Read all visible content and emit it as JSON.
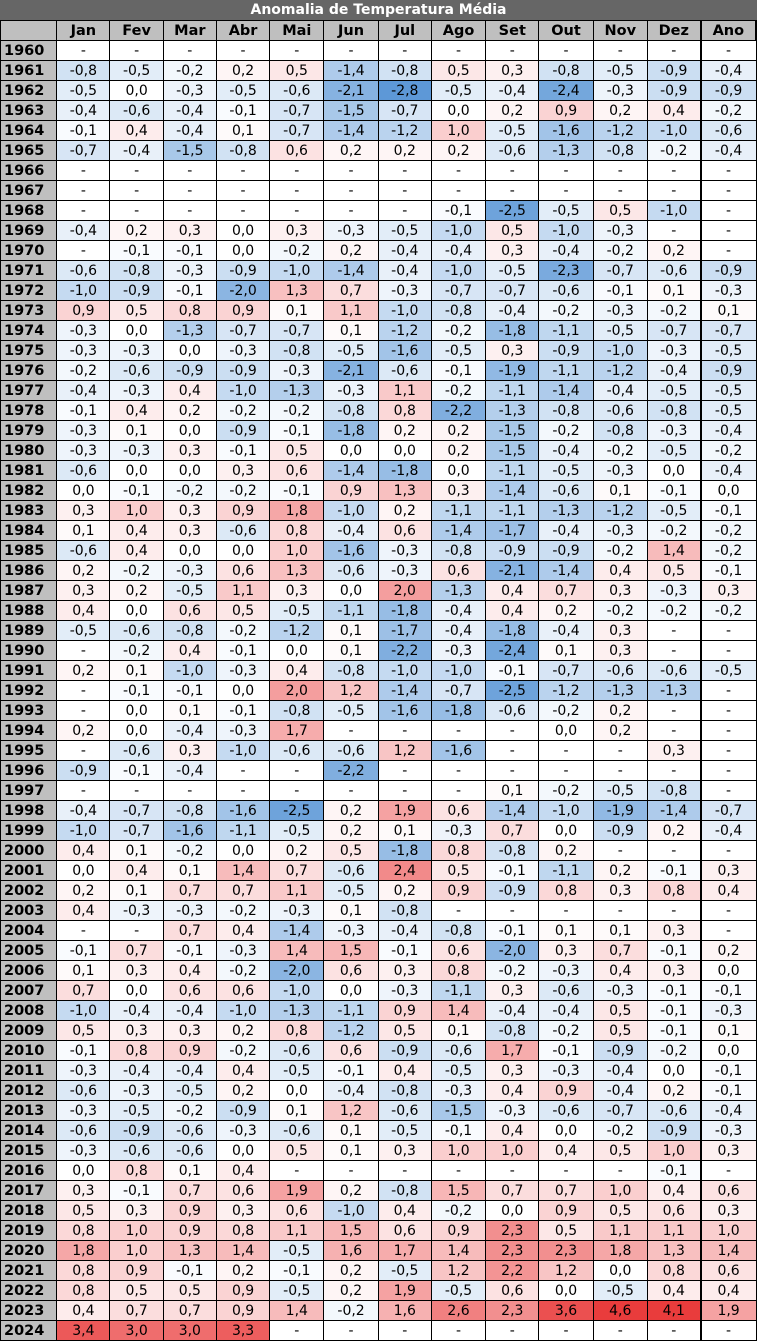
{
  "title": "Anomalia de Temperatura Média",
  "columns": [
    "Jan",
    "Fev",
    "Mar",
    "Abr",
    "Mai",
    "Jun",
    "Jul",
    "Ago",
    "Set",
    "Out",
    "Nov",
    "Dez",
    "Ano"
  ],
  "colors": {
    "negative_max": "#4f8fd3",
    "neutral": "#ffffff",
    "positive_max": "#e83232",
    "header_bg": "#bfbfbf",
    "title_bg": "#666666"
  },
  "chart_data": {
    "type": "heatmap",
    "title": "Anomalia de Temperatura Média",
    "columns": [
      "Jan",
      "Fev",
      "Mar",
      "Abr",
      "Mai",
      "Jun",
      "Jul",
      "Ago",
      "Set",
      "Out",
      "Nov",
      "Dez",
      "Ano"
    ],
    "rows": [
      {
        "year": "1960",
        "values": [
          "-",
          "-",
          "-",
          "-",
          "-",
          "-",
          "-",
          "-",
          "-",
          "-",
          "-",
          "-",
          "-"
        ]
      },
      {
        "year": "1961",
        "values": [
          "-0,8",
          "-0,5",
          "-0,2",
          "0,2",
          "0,5",
          "-1,4",
          "-0,8",
          "0,5",
          "0,3",
          "-0,8",
          "-0,5",
          "-0,9",
          "-0,4"
        ]
      },
      {
        "year": "1962",
        "values": [
          "-0,5",
          "0,0",
          "-0,3",
          "-0,5",
          "-0,6",
          "-2,1",
          "-2,8",
          "-0,5",
          "-0,4",
          "-2,4",
          "-0,3",
          "-0,9",
          "-0,9"
        ]
      },
      {
        "year": "1963",
        "values": [
          "-0,4",
          "-0,6",
          "-0,4",
          "-0,1",
          "-0,7",
          "-1,5",
          "-0,7",
          "0,0",
          "0,2",
          "0,9",
          "0,2",
          "0,4",
          "-0,2"
        ]
      },
      {
        "year": "1964",
        "values": [
          "-0,1",
          "0,4",
          "-0,4",
          "0,1",
          "-0,7",
          "-1,4",
          "-1,2",
          "1,0",
          "-0,5",
          "-1,6",
          "-1,2",
          "-1,0",
          "-0,6"
        ]
      },
      {
        "year": "1965",
        "values": [
          "-0,7",
          "-0,4",
          "-1,5",
          "-0,8",
          "0,6",
          "0,2",
          "0,2",
          "0,2",
          "-0,6",
          "-1,3",
          "-0,8",
          "-0,2",
          "-0,4"
        ]
      },
      {
        "year": "1966",
        "values": [
          "-",
          "-",
          "-",
          "-",
          "-",
          "-",
          "-",
          "-",
          "-",
          "-",
          "-",
          "-",
          "-"
        ]
      },
      {
        "year": "1967",
        "values": [
          "-",
          "-",
          "-",
          "-",
          "-",
          "-",
          "-",
          "-",
          "-",
          "-",
          "-",
          "-",
          "-"
        ]
      },
      {
        "year": "1968",
        "values": [
          "-",
          "-",
          "-",
          "-",
          "-",
          "-",
          "-",
          "-0,1",
          "-2,5",
          "-0,5",
          "0,5",
          "-1,0",
          "-"
        ]
      },
      {
        "year": "1969",
        "values": [
          "-0,4",
          "0,2",
          "0,3",
          "0,0",
          "0,3",
          "-0,3",
          "-0,5",
          "-1,0",
          "0,5",
          "-1,0",
          "-0,3",
          "-",
          "-"
        ]
      },
      {
        "year": "1970",
        "values": [
          "-",
          "-0,1",
          "-0,1",
          "0,0",
          "-0,2",
          "0,2",
          "-0,4",
          "-0,4",
          "0,3",
          "-0,4",
          "-0,2",
          "0,2",
          "-"
        ]
      },
      {
        "year": "1971",
        "values": [
          "-0,6",
          "-0,8",
          "-0,3",
          "-0,9",
          "-1,0",
          "-1,4",
          "-0,4",
          "-1,0",
          "-0,5",
          "-2,3",
          "-0,7",
          "-0,6",
          "-0,9"
        ]
      },
      {
        "year": "1972",
        "values": [
          "-1,0",
          "-0,9",
          "-0,1",
          "-2,0",
          "1,3",
          "0,7",
          "-0,3",
          "-0,7",
          "-0,7",
          "-0,6",
          "-0,1",
          "0,1",
          "-0,3"
        ]
      },
      {
        "year": "1973",
        "values": [
          "0,9",
          "0,5",
          "0,8",
          "0,9",
          "0,1",
          "1,1",
          "-1,0",
          "-0,8",
          "-0,4",
          "-0,2",
          "-0,3",
          "-0,2",
          "0,1"
        ]
      },
      {
        "year": "1974",
        "values": [
          "-0,3",
          "0,0",
          "-1,3",
          "-0,7",
          "-0,7",
          "0,1",
          "-1,2",
          "-0,2",
          "-1,8",
          "-1,1",
          "-0,5",
          "-0,7",
          "-0,7"
        ]
      },
      {
        "year": "1975",
        "values": [
          "-0,3",
          "-0,3",
          "0,0",
          "-0,3",
          "-0,8",
          "-0,5",
          "-1,6",
          "-0,5",
          "0,3",
          "-0,9",
          "-1,0",
          "-0,3",
          "-0,5"
        ]
      },
      {
        "year": "1976",
        "values": [
          "-0,2",
          "-0,6",
          "-0,9",
          "-0,9",
          "-0,3",
          "-2,1",
          "-0,6",
          "-0,1",
          "-1,9",
          "-1,1",
          "-1,2",
          "-0,4",
          "-0,9"
        ]
      },
      {
        "year": "1977",
        "values": [
          "-0,4",
          "-0,3",
          "0,4",
          "-1,0",
          "-1,3",
          "-0,3",
          "1,1",
          "-0,2",
          "-1,1",
          "-1,4",
          "-0,4",
          "-0,5",
          "-0,5"
        ]
      },
      {
        "year": "1978",
        "values": [
          "-0,1",
          "0,4",
          "0,2",
          "-0,2",
          "-0,2",
          "-0,8",
          "0,8",
          "-2,2",
          "-1,3",
          "-0,8",
          "-0,6",
          "-0,8",
          "-0,5"
        ]
      },
      {
        "year": "1979",
        "values": [
          "-0,3",
          "0,1",
          "0,0",
          "-0,9",
          "-0,1",
          "-1,8",
          "0,2",
          "0,2",
          "-1,5",
          "-0,2",
          "-0,8",
          "-0,3",
          "-0,4"
        ]
      },
      {
        "year": "1980",
        "values": [
          "-0,3",
          "-0,3",
          "0,3",
          "-0,1",
          "0,5",
          "0,0",
          "0,0",
          "0,2",
          "-1,5",
          "-0,4",
          "-0,2",
          "-0,5",
          "-0,2"
        ]
      },
      {
        "year": "1981",
        "values": [
          "-0,6",
          "0,0",
          "0,0",
          "0,3",
          "0,6",
          "-1,4",
          "-1,8",
          "0,0",
          "-1,1",
          "-0,5",
          "-0,3",
          "0,0",
          "-0,4"
        ]
      },
      {
        "year": "1982",
        "values": [
          "0,0",
          "-0,1",
          "-0,2",
          "-0,2",
          "-0,1",
          "0,9",
          "1,3",
          "0,3",
          "-1,4",
          "-0,6",
          "0,1",
          "-0,1",
          "0,0"
        ]
      },
      {
        "year": "1983",
        "values": [
          "0,3",
          "1,0",
          "0,3",
          "0,9",
          "1,8",
          "-1,0",
          "0,2",
          "-1,1",
          "-1,1",
          "-1,3",
          "-1,2",
          "-0,5",
          "-0,1"
        ]
      },
      {
        "year": "1984",
        "values": [
          "0,1",
          "0,4",
          "0,3",
          "-0,6",
          "0,8",
          "-0,4",
          "0,6",
          "-1,4",
          "-1,7",
          "-0,4",
          "-0,3",
          "-0,2",
          "-0,2"
        ]
      },
      {
        "year": "1985",
        "values": [
          "-0,6",
          "0,4",
          "0,0",
          "0,0",
          "1,0",
          "-1,6",
          "-0,3",
          "-0,8",
          "-0,9",
          "-0,9",
          "-0,2",
          "1,4",
          "-0,2"
        ]
      },
      {
        "year": "1986",
        "values": [
          "0,2",
          "-0,2",
          "-0,3",
          "0,6",
          "1,3",
          "-0,6",
          "-0,3",
          "0,6",
          "-2,1",
          "-1,4",
          "0,4",
          "0,5",
          "-0,1"
        ]
      },
      {
        "year": "1987",
        "values": [
          "0,3",
          "0,2",
          "-0,5",
          "1,1",
          "0,3",
          "0,0",
          "2,0",
          "-1,3",
          "0,4",
          "0,7",
          "0,3",
          "-0,3",
          "0,3"
        ]
      },
      {
        "year": "1988",
        "values": [
          "0,4",
          "0,0",
          "0,6",
          "0,5",
          "-0,5",
          "-1,1",
          "-1,8",
          "-0,4",
          "0,4",
          "0,2",
          "-0,2",
          "-0,2",
          "-0,2"
        ]
      },
      {
        "year": "1989",
        "values": [
          "-0,5",
          "-0,6",
          "-0,8",
          "-0,2",
          "-1,2",
          "0,1",
          "-1,7",
          "-0,4",
          "-1,8",
          "-0,4",
          "0,3",
          "-",
          "-"
        ]
      },
      {
        "year": "1990",
        "values": [
          "-",
          "-0,2",
          "0,4",
          "-0,1",
          "0,0",
          "0,1",
          "-2,2",
          "-0,3",
          "-2,4",
          "0,1",
          "0,3",
          "-",
          "-"
        ]
      },
      {
        "year": "1991",
        "values": [
          "0,2",
          "0,1",
          "-1,0",
          "-0,3",
          "0,4",
          "-0,8",
          "-1,0",
          "-1,0",
          "-0,1",
          "-0,7",
          "-0,6",
          "-0,6",
          "-0,5"
        ]
      },
      {
        "year": "1992",
        "values": [
          "-",
          "-0,1",
          "-0,1",
          "0,0",
          "2,0",
          "1,2",
          "-1,4",
          "-0,7",
          "-2,5",
          "-1,2",
          "-1,3",
          "-1,3",
          "-"
        ]
      },
      {
        "year": "1993",
        "values": [
          "-",
          "0,0",
          "0,1",
          "-0,1",
          "-0,8",
          "-0,5",
          "-1,6",
          "-1,8",
          "-0,6",
          "-0,2",
          "0,2",
          "-",
          "-"
        ]
      },
      {
        "year": "1994",
        "values": [
          "0,2",
          "0,0",
          "-0,4",
          "-0,3",
          "1,7",
          "-",
          "-",
          "-",
          "-",
          "0,0",
          "0,2",
          "-",
          "-"
        ]
      },
      {
        "year": "1995",
        "values": [
          "-",
          "-0,6",
          "0,3",
          "-1,0",
          "-0,6",
          "-0,6",
          "1,2",
          "-1,6",
          "-",
          "-",
          "-",
          "0,3",
          "-"
        ]
      },
      {
        "year": "1996",
        "values": [
          "-0,9",
          "-0,1",
          "-0,4",
          "-",
          "-",
          "-2,2",
          "-",
          "-",
          "-",
          "-",
          "-",
          "-",
          "-"
        ]
      },
      {
        "year": "1997",
        "values": [
          "-",
          "-",
          "-",
          "-",
          "-",
          "-",
          "-",
          "-",
          "0,1",
          "-0,2",
          "-0,5",
          "-0,8",
          "-"
        ]
      },
      {
        "year": "1998",
        "values": [
          "-0,4",
          "-0,7",
          "-0,8",
          "-1,6",
          "-2,5",
          "0,2",
          "1,9",
          "0,6",
          "-1,4",
          "-1,0",
          "-1,9",
          "-1,4",
          "-0,7"
        ]
      },
      {
        "year": "1999",
        "values": [
          "-1,0",
          "-0,7",
          "-1,6",
          "-1,1",
          "-0,5",
          "0,2",
          "0,1",
          "-0,3",
          "0,7",
          "0,0",
          "-0,9",
          "0,2",
          "-0,4"
        ]
      },
      {
        "year": "2000",
        "values": [
          "0,4",
          "0,1",
          "-0,2",
          "0,0",
          "0,2",
          "0,5",
          "-1,8",
          "0,8",
          "-0,8",
          "0,2",
          "-",
          "-",
          "-"
        ]
      },
      {
        "year": "2001",
        "values": [
          "0,0",
          "0,4",
          "0,1",
          "1,4",
          "0,7",
          "-0,6",
          "2,4",
          "0,5",
          "-0,1",
          "-1,1",
          "0,2",
          "-0,1",
          "0,3"
        ]
      },
      {
        "year": "2002",
        "values": [
          "0,2",
          "0,1",
          "0,7",
          "0,7",
          "1,1",
          "-0,5",
          "0,2",
          "0,9",
          "-0,9",
          "0,8",
          "0,3",
          "0,8",
          "0,4"
        ]
      },
      {
        "year": "2003",
        "values": [
          "0,4",
          "-0,3",
          "-0,3",
          "-0,2",
          "-0,3",
          "0,1",
          "-0,8",
          "-",
          "-",
          "-",
          "-",
          "-",
          "-"
        ]
      },
      {
        "year": "2004",
        "values": [
          "-",
          "-",
          "0,7",
          "0,4",
          "-1,4",
          "-0,3",
          "-0,4",
          "-0,8",
          "-0,1",
          "0,1",
          "0,1",
          "0,3",
          "-"
        ]
      },
      {
        "year": "2005",
        "values": [
          "-0,1",
          "0,7",
          "-0,1",
          "-0,3",
          "1,4",
          "1,5",
          "-0,1",
          "0,6",
          "-2,0",
          "0,3",
          "0,7",
          "-0,1",
          "0,2"
        ]
      },
      {
        "year": "2006",
        "values": [
          "0,1",
          "0,3",
          "0,4",
          "-0,2",
          "-2,0",
          "0,6",
          "0,3",
          "0,8",
          "-0,2",
          "-0,3",
          "0,4",
          "0,3",
          "0,0"
        ]
      },
      {
        "year": "2007",
        "values": [
          "0,7",
          "0,0",
          "0,6",
          "0,6",
          "-1,0",
          "0,0",
          "-0,3",
          "-1,1",
          "0,3",
          "-0,6",
          "-0,3",
          "-0,1",
          "-0,1"
        ]
      },
      {
        "year": "2008",
        "values": [
          "-1,0",
          "-0,4",
          "-0,4",
          "-1,0",
          "-1,3",
          "-1,1",
          "0,9",
          "1,4",
          "-0,4",
          "-0,4",
          "0,5",
          "-0,1",
          "-0,3"
        ]
      },
      {
        "year": "2009",
        "values": [
          "0,5",
          "0,3",
          "0,3",
          "0,2",
          "0,8",
          "-1,2",
          "0,5",
          "0,1",
          "-0,8",
          "-0,2",
          "0,5",
          "-0,1",
          "0,1"
        ]
      },
      {
        "year": "2010",
        "values": [
          "-0,1",
          "0,8",
          "0,9",
          "-0,2",
          "-0,6",
          "0,6",
          "-0,9",
          "-0,6",
          "1,7",
          "-0,1",
          "-0,9",
          "-0,2",
          "0,0"
        ]
      },
      {
        "year": "2011",
        "values": [
          "-0,3",
          "-0,4",
          "-0,4",
          "0,4",
          "-0,5",
          "-0,1",
          "0,4",
          "-0,5",
          "0,3",
          "-0,3",
          "-0,4",
          "0,0",
          "-0,1"
        ]
      },
      {
        "year": "2012",
        "values": [
          "-0,6",
          "-0,3",
          "-0,5",
          "0,2",
          "0,0",
          "-0,4",
          "-0,8",
          "-0,3",
          "0,4",
          "0,9",
          "-0,4",
          "0,2",
          "-0,1"
        ]
      },
      {
        "year": "2013",
        "values": [
          "-0,3",
          "-0,5",
          "-0,2",
          "-0,9",
          "0,1",
          "1,2",
          "-0,6",
          "-1,5",
          "-0,3",
          "-0,6",
          "-0,7",
          "-0,6",
          "-0,4"
        ]
      },
      {
        "year": "2014",
        "values": [
          "-0,6",
          "-0,9",
          "-0,6",
          "-0,3",
          "-0,6",
          "0,1",
          "-0,5",
          "-0,1",
          "0,4",
          "0,0",
          "-0,2",
          "-0,9",
          "-0,3"
        ]
      },
      {
        "year": "2015",
        "values": [
          "-0,3",
          "-0,6",
          "-0,6",
          "0,0",
          "0,5",
          "0,1",
          "0,3",
          "1,0",
          "1,0",
          "0,4",
          "0,5",
          "1,0",
          "0,3"
        ]
      },
      {
        "year": "2016",
        "values": [
          "0,0",
          "0,8",
          "0,1",
          "0,4",
          "-",
          "-",
          "-",
          "-",
          "-",
          "-",
          "-",
          "-0,1",
          "-"
        ]
      },
      {
        "year": "2017",
        "values": [
          "0,3",
          "-0,1",
          "0,7",
          "0,6",
          "1,9",
          "0,2",
          "-0,8",
          "1,5",
          "0,7",
          "0,7",
          "1,0",
          "0,4",
          "0,6"
        ]
      },
      {
        "year": "2018",
        "values": [
          "0,5",
          "0,3",
          "0,9",
          "0,3",
          "0,6",
          "-1,0",
          "0,4",
          "-0,2",
          "0,0",
          "0,9",
          "0,5",
          "0,6",
          "0,3"
        ]
      },
      {
        "year": "2019",
        "values": [
          "0,8",
          "1,0",
          "0,9",
          "0,8",
          "1,1",
          "1,5",
          "0,6",
          "0,9",
          "2,3",
          "0,5",
          "1,1",
          "1,1",
          "1,0"
        ]
      },
      {
        "year": "2020",
        "values": [
          "1,8",
          "1,0",
          "1,3",
          "1,4",
          "-0,5",
          "1,6",
          "1,7",
          "1,4",
          "2,3",
          "2,3",
          "1,8",
          "1,3",
          "1,4"
        ]
      },
      {
        "year": "2021",
        "values": [
          "0,8",
          "0,9",
          "-0,1",
          "0,2",
          "-0,1",
          "0,2",
          "-0,5",
          "1,2",
          "2,2",
          "1,2",
          "0,0",
          "0,8",
          "0,6"
        ]
      },
      {
        "year": "2022",
        "values": [
          "0,8",
          "0,5",
          "0,5",
          "0,9",
          "-0,5",
          "0,2",
          "1,9",
          "-0,5",
          "0,6",
          "0,0",
          "-0,5",
          "0,4",
          "0,4"
        ]
      },
      {
        "year": "2023",
        "values": [
          "0,4",
          "0,7",
          "0,7",
          "0,9",
          "1,4",
          "-0,2",
          "1,6",
          "2,6",
          "2,3",
          "3,6",
          "4,6",
          "4,1",
          "1,9"
        ]
      },
      {
        "year": "2024",
        "values": [
          "3,4",
          "3,0",
          "3,0",
          "3,3",
          "-",
          "-",
          "-",
          "-",
          "-",
          "-",
          "-",
          "-",
          "-"
        ]
      }
    ]
  }
}
